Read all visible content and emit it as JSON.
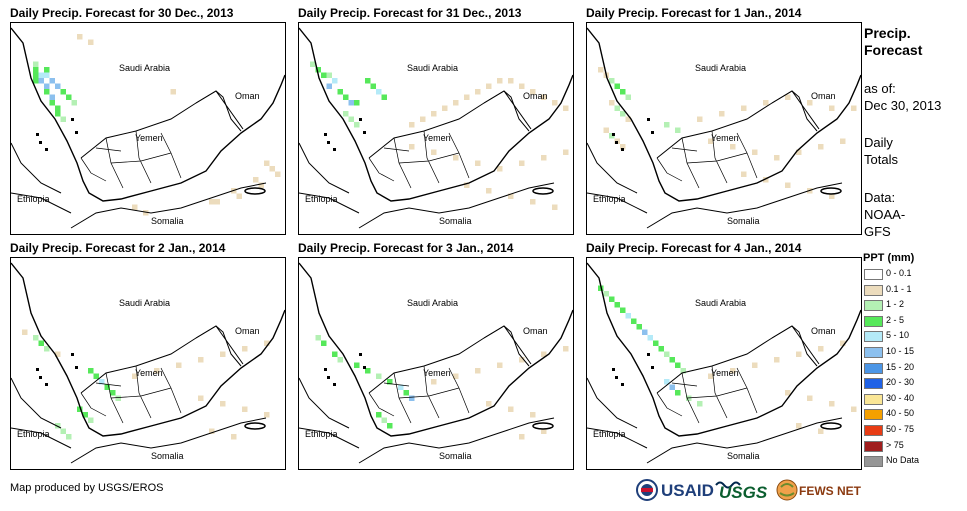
{
  "panels": [
    {
      "title": "Daily Precip. Forecast for 30 Dec., 2013"
    },
    {
      "title": "Daily Precip. Forecast for 31 Dec., 2013"
    },
    {
      "title": "Daily Precip. Forecast for 1 Jan., 2014"
    },
    {
      "title": "Daily Precip. Forecast for 2 Jan., 2014"
    },
    {
      "title": "Daily Precip. Forecast for 3 Jan., 2014"
    },
    {
      "title": "Daily Precip. Forecast for 4 Jan., 2014"
    }
  ],
  "map_labels": {
    "saudi": "Saudi Arabia",
    "oman": "Oman",
    "yemen": "Yemen",
    "ethiopia": "Ethiopia",
    "somalia": "Somalia"
  },
  "sidebar": {
    "title_line1": "Precip.",
    "title_line2": "Forecast",
    "asof_line1": "as of:",
    "asof_line2": "Dec 30, 2013",
    "daily_line1": "Daily",
    "daily_line2": "Totals",
    "data_line1": "Data:",
    "data_line2": "NOAA-",
    "data_line3": "GFS"
  },
  "legend": {
    "title": "PPT (mm)",
    "items": [
      {
        "label": "0 - 0.1",
        "color": "#ffffff"
      },
      {
        "label": "0.1 - 1",
        "color": "#ecdcbd"
      },
      {
        "label": "1 - 2",
        "color": "#b4f0b4"
      },
      {
        "label": "2 - 5",
        "color": "#56e85a"
      },
      {
        "label": "5 - 10",
        "color": "#b4eaf8"
      },
      {
        "label": "10 - 15",
        "color": "#8cc0ee"
      },
      {
        "label": "15 - 20",
        "color": "#4c96e6"
      },
      {
        "label": "20 - 30",
        "color": "#2062e6"
      },
      {
        "label": "30 - 40",
        "color": "#fae696"
      },
      {
        "label": "40 - 50",
        "color": "#f5a000"
      },
      {
        "label": "50 - 75",
        "color": "#e83c14"
      },
      {
        "label": "> 75",
        "color": "#a01e1e"
      },
      {
        "label": "No Data",
        "color": "#969696"
      }
    ]
  },
  "credit": "Map produced by USGS/EROS",
  "logos": {
    "usaid": "USAID",
    "usgs": "USGS",
    "fews": "FEWS NET"
  }
}
